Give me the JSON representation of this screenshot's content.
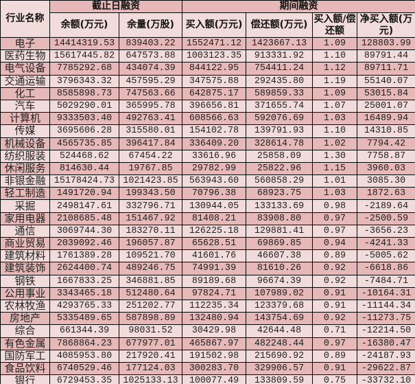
{
  "header": {
    "industry": "行业名称",
    "group1": "截止日融资",
    "group2": "期间融资",
    "columns": [
      "余额(万元)",
      "余量(万股)",
      "买入额(万元)",
      "偿还额(万元)",
      "买入额/偿还额",
      "净买入额(万元)"
    ]
  },
  "colors": {
    "dark_row": "#e6b8b7",
    "light_row": "#f2dcdb"
  },
  "rows": [
    [
      "电子",
      "14414319.53",
      "839403.22",
      "1552471.12",
      "1423667.13",
      "1.09",
      "128803.99"
    ],
    [
      "医药生物",
      "15617445.82",
      "647573.88",
      "1003123.35",
      "913331.92",
      "1.10",
      "89791.44"
    ],
    [
      "电气设备",
      "7785292.68",
      "434074.39",
      "844122.95",
      "754411.24",
      "1.12",
      "89711.71"
    ],
    [
      "交通运输",
      "3796343.32",
      "457595.29",
      "347575.88",
      "292435.80",
      "1.19",
      "55140.07"
    ],
    [
      "化工",
      "8585898.73",
      "747563.66",
      "642875.17",
      "589859.33",
      "1.09",
      "53015.84"
    ],
    [
      "汽车",
      "5029290.01",
      "365995.78",
      "396656.81",
      "371655.74",
      "1.07",
      "25001.07"
    ],
    [
      "计算机",
      "9333503.40",
      "492763.41",
      "608566.63",
      "592076.69",
      "1.03",
      "16489.94"
    ],
    [
      "传媒",
      "3695606.28",
      "315580.01",
      "154102.78",
      "139791.93",
      "1.10",
      "14310.85"
    ],
    [
      "机械设备",
      "4565735.85",
      "396417.84",
      "336409.20",
      "328614.78",
      "1.02",
      "7794.42"
    ],
    [
      "纺织服装",
      "524468.62",
      "67454.22",
      "33616.96",
      "25858.09",
      "1.30",
      "7758.87"
    ],
    [
      "休闲服务",
      "814630.44",
      "19767.85",
      "29782.99",
      "25822.96",
      "1.15",
      "3960.03"
    ],
    [
      "非银金融",
      "15178424.73",
      "1021423.85",
      "563943.60",
      "560858.29",
      "1.01",
      "3085.30"
    ],
    [
      "轻工制造",
      "1491720.94",
      "199343.50",
      "70796.38",
      "68923.75",
      "1.03",
      "1872.63"
    ],
    [
      "采掘",
      "2498147.61",
      "332796.71",
      "130944.05",
      "133133.69",
      "0.98",
      "-2189.64"
    ],
    [
      "家用电器",
      "2108685.48",
      "151467.92",
      "81408.21",
      "83908.80",
      "0.97",
      "-2500.59"
    ],
    [
      "通信",
      "3069744.30",
      "183270.11",
      "126225.18",
      "129881.41",
      "0.97",
      "-3656.23"
    ],
    [
      "商业贸易",
      "2039092.46",
      "196057.87",
      "65628.51",
      "69869.85",
      "0.94",
      "-4241.33"
    ],
    [
      "建筑材料",
      "1761389.28",
      "109521.70",
      "41601.76",
      "46607.38",
      "0.89",
      "-5005.62"
    ],
    [
      "建筑装饰",
      "2624400.74",
      "489246.75",
      "74991.39",
      "81610.26",
      "0.92",
      "-6618.86"
    ],
    [
      "钢铁",
      "1667833.25",
      "346881.85",
      "89189.68",
      "96674.39",
      "0.92",
      "-7484.71"
    ],
    [
      "公用事业",
      "3343465.18",
      "512480.64",
      "97824.71",
      "107989.02",
      "0.91",
      "-10164.31"
    ],
    [
      "农林牧渔",
      "4293765.33",
      "251202.77",
      "112235.34",
      "123379.68",
      "0.91",
      "-11144.34"
    ],
    [
      "房地产",
      "5335489.65",
      "587898.89",
      "132480.94",
      "143754.69",
      "0.92",
      "-11273.75"
    ],
    [
      "综合",
      "661344.39",
      "98031.52",
      "30429.98",
      "42644.48",
      "0.71",
      "-12214.50"
    ],
    [
      "有色金属",
      "7868864.23",
      "677977.01",
      "465867.97",
      "482248.44",
      "0.97",
      "-16380.47"
    ],
    [
      "国防军工",
      "4085953.80",
      "217920.41",
      "191502.98",
      "215690.92",
      "0.89",
      "-24187.93"
    ],
    [
      "食品饮料",
      "6740529.46",
      "177124.03",
      "300283.70",
      "329906.57",
      "0.91",
      "-29622.87"
    ],
    [
      "银行",
      "6729453.35",
      "1025133.13",
      "100077.49",
      "133809.59",
      "0.75",
      "-33732.10"
    ]
  ]
}
